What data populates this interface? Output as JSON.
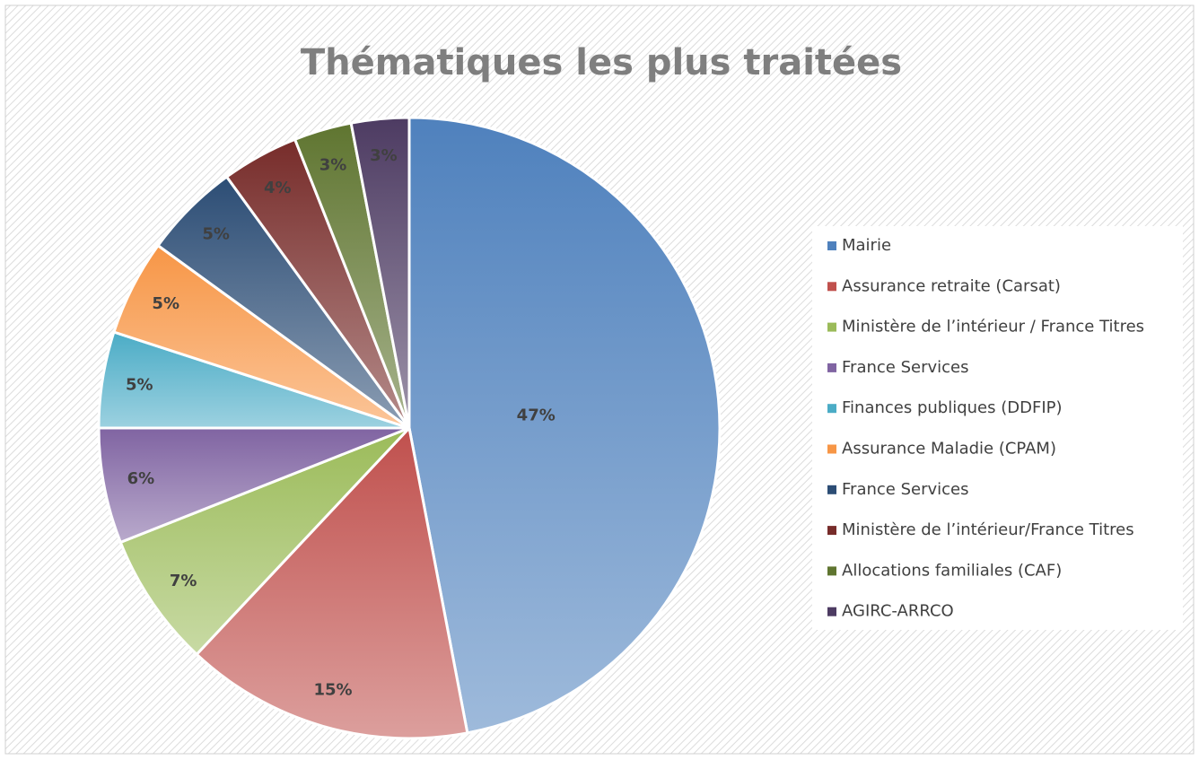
{
  "chart_data": {
    "type": "pie",
    "title": "Thématiques les plus traitées",
    "categories": [
      "Mairie",
      "Assurance retraite (Carsat)",
      "Ministère de l’intérieur / France Titres",
      "France Services",
      "Finances publiques (DDFIP)",
      "Assurance Maladie (CPAM)",
      "France Services",
      "Ministère de l’intérieur/France Titres",
      "Allocations familiales (CAF)",
      "AGIRC-ARRCO"
    ],
    "values": [
      47,
      15,
      7,
      6,
      5,
      5,
      5,
      4,
      3,
      3
    ],
    "value_labels": [
      "47%",
      "15%",
      "7%",
      "6%",
      "5%",
      "5%",
      "5%",
      "4%",
      "3%",
      "3%"
    ],
    "colors": [
      "#4f81bd",
      "#c0504d",
      "#9bbb59",
      "#8064a2",
      "#4bacc6",
      "#f79646",
      "#2c4d75",
      "#772c2a",
      "#5f7530",
      "#4d3b62"
    ],
    "legend": "right"
  }
}
